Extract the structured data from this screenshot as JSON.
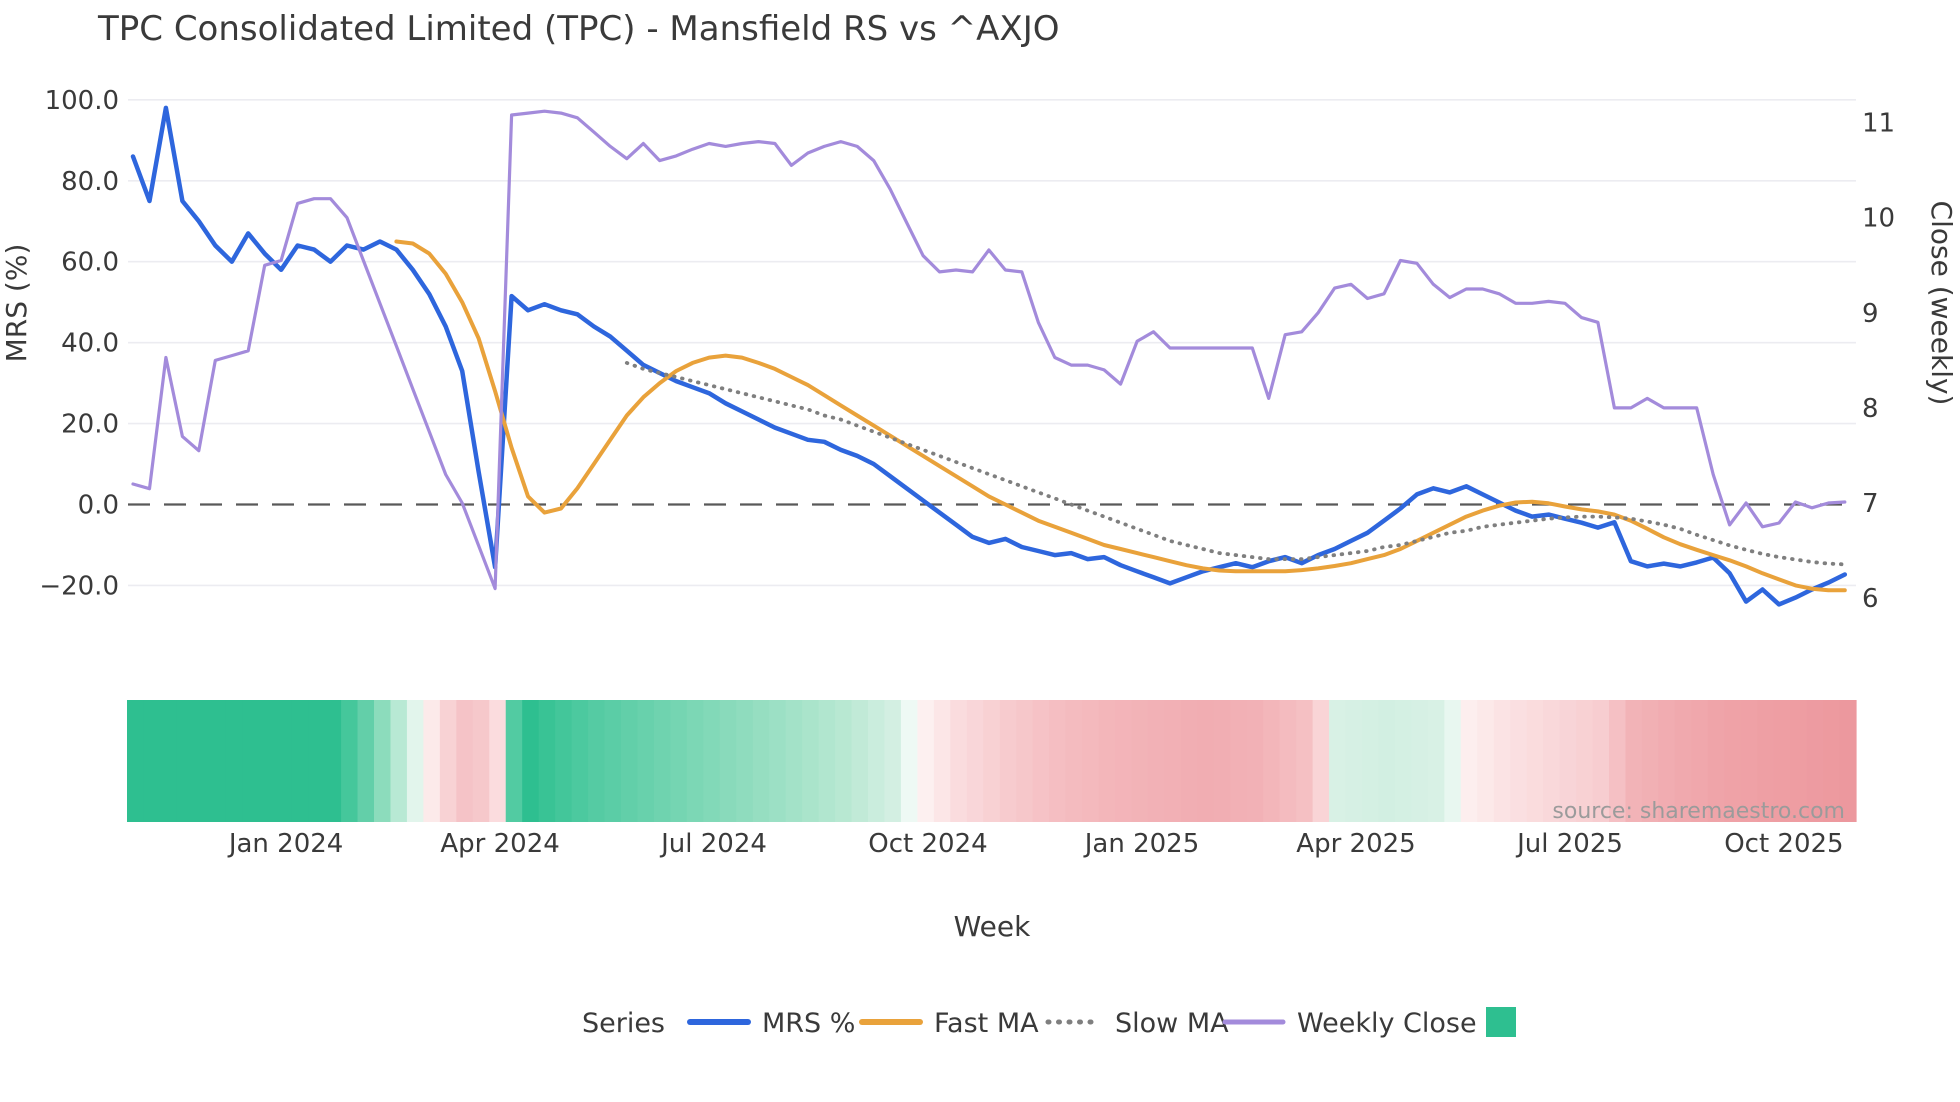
{
  "title": "TPC Consolidated Limited (TPC) - Mansfield RS vs ^AXJO",
  "source_text": "source: sharemaestro.com",
  "axes": {
    "left_label": "MRS (%)",
    "right_label": "Close (weekly)",
    "x_label": "Week"
  },
  "legend": {
    "title": "Series",
    "heatmap_swatch_color": "#2ebf90"
  },
  "chart_data": {
    "type": "line",
    "title": "TPC Consolidated Limited (TPC) - Mansfield RS vs ^AXJO",
    "xlabel": "Week",
    "ylabel_left": "MRS (%)",
    "ylabel_right": "Close (weekly)",
    "x_unit": "week",
    "weeks_total": 105,
    "grid": true,
    "legend_position": "bottom",
    "left_axis": {
      "lim": [
        -27,
        105
      ],
      "ticks": [
        {
          "label": "100.0",
          "value": 100
        },
        {
          "label": "80.0",
          "value": 80
        },
        {
          "label": "60.0",
          "value": 60
        },
        {
          "label": "40.0",
          "value": 40
        },
        {
          "label": "20.0",
          "value": 20
        },
        {
          "label": "0.0",
          "value": 0
        },
        {
          "label": "−20.0",
          "value": -20
        }
      ]
    },
    "right_axis": {
      "lim": [
        5.9,
        11.3
      ],
      "ticks": [
        {
          "label": "11",
          "value": 11
        },
        {
          "label": "10",
          "value": 10
        },
        {
          "label": "9",
          "value": 9
        },
        {
          "label": "8",
          "value": 8
        },
        {
          "label": "7",
          "value": 7
        },
        {
          "label": "6",
          "value": 6
        }
      ]
    },
    "x_ticks": [
      {
        "label": "Jan 2024",
        "week": 9.3
      },
      {
        "label": "Apr 2024",
        "week": 22.3
      },
      {
        "label": "Jul 2024",
        "week": 35.3
      },
      {
        "label": "Oct 2024",
        "week": 48.3
      },
      {
        "label": "Jan 2025",
        "week": 61.3
      },
      {
        "label": "Apr 2025",
        "week": 74.3
      },
      {
        "label": "Jul 2025",
        "week": 87.3
      },
      {
        "label": "Oct 2025",
        "week": 100.3
      }
    ],
    "zero_line": {
      "value": 0,
      "axis": "left",
      "style": "dashed",
      "color": "#595959"
    },
    "series": [
      {
        "name": "MRS %",
        "axis": "left",
        "color": "#2e66dd",
        "width": 4.5,
        "style": "solid",
        "start_week": 0,
        "values": [
          86,
          75,
          98,
          75,
          70,
          64,
          60,
          67,
          62,
          58,
          64,
          63,
          60,
          64,
          63,
          65,
          63,
          58,
          52,
          44,
          33,
          8,
          -15.5,
          51.5,
          48,
          49.5,
          48,
          47,
          44,
          41.5,
          38,
          34.5,
          32.5,
          30.5,
          29,
          27.5,
          25,
          23,
          21,
          19,
          17.5,
          16,
          15.5,
          13.5,
          12,
          10,
          7,
          4,
          1,
          -2,
          -5,
          -8,
          -9.5,
          -8.5,
          -10.5,
          -11.5,
          -12.5,
          -12,
          -13.5,
          -13,
          -15,
          -16.5,
          -18,
          -19.5,
          -18,
          -16.5,
          -15.5,
          -14.5,
          -15.5,
          -14,
          -13,
          -14.5,
          -12.5,
          -11,
          -9,
          -7,
          -4,
          -1,
          2.5,
          4,
          3,
          4.5,
          2.5,
          0.5,
          -1.5,
          -3,
          -2.5,
          -3.5,
          -4.5,
          -5.7,
          -4.4,
          -14,
          -15.3,
          -14.6,
          -15.3,
          -14.3,
          -13.1,
          -17,
          -24,
          -21,
          -24.7,
          -23,
          -21,
          -19.3,
          -17.3
        ]
      },
      {
        "name": "Fast MA",
        "axis": "left",
        "color": "#e9a23b",
        "width": 4,
        "style": "solid",
        "start_week": 16,
        "values": [
          65,
          64.5,
          62,
          57,
          50,
          41,
          28,
          14,
          2,
          -2,
          -1,
          4,
          10,
          16,
          22,
          26.5,
          30,
          33,
          35,
          36.3,
          36.8,
          36.3,
          35,
          33.5,
          31.5,
          29.5,
          27,
          24.5,
          22,
          19.5,
          17,
          14.5,
          12,
          9.5,
          7,
          4.5,
          2,
          0,
          -2,
          -4,
          -5.5,
          -7,
          -8.5,
          -10,
          -11,
          -12,
          -13,
          -14,
          -15,
          -15.8,
          -16.3,
          -16.5,
          -16.5,
          -16.5,
          -16.5,
          -16.2,
          -15.8,
          -15.2,
          -14.5,
          -13.5,
          -12.5,
          -11,
          -9,
          -7,
          -5,
          -3,
          -1.5,
          -0.3,
          0.5,
          0.7,
          0.3,
          -0.5,
          -1.2,
          -1.7,
          -2.5,
          -4,
          -6,
          -8.1,
          -9.8,
          -11.2,
          -12.5,
          -13.8,
          -15.3,
          -17,
          -18.5,
          -20,
          -20.8,
          -21.2,
          -21.2
        ]
      },
      {
        "name": "Slow MA",
        "axis": "left",
        "color": "#7f7f7f",
        "width": 3.8,
        "style": "dotted",
        "start_week": 30,
        "values": [
          35,
          33.5,
          32.5,
          31.5,
          30.5,
          29.5,
          28.5,
          27.5,
          26.5,
          25.5,
          24.5,
          23.5,
          22,
          21,
          19.5,
          18,
          16.5,
          15,
          13.5,
          12,
          10.5,
          9,
          7.5,
          6,
          4.5,
          3,
          1.5,
          0,
          -1.5,
          -3,
          -4.5,
          -6,
          -7.5,
          -9,
          -10,
          -11,
          -12,
          -12.5,
          -13,
          -13.5,
          -13.5,
          -13.5,
          -13,
          -12.5,
          -12,
          -11.5,
          -10.5,
          -10,
          -9,
          -8,
          -7,
          -6.5,
          -5.5,
          -5,
          -4.5,
          -4,
          -3.5,
          -3.2,
          -3,
          -3,
          -3.2,
          -3.5,
          -4.2,
          -5,
          -6,
          -7.5,
          -8.8,
          -10.1,
          -11.2,
          -12.2,
          -13,
          -13.6,
          -14.2,
          -14.6,
          -14.8
        ]
      },
      {
        "name": "Weekly Close",
        "axis": "right",
        "color": "#a38bdb",
        "width": 3.2,
        "style": "solid",
        "start_week": 0,
        "values": [
          7.2,
          7.15,
          8.53,
          7.7,
          7.55,
          8.5,
          8.55,
          8.6,
          9.5,
          9.55,
          10.15,
          10.2,
          10.2,
          10.0,
          9.55,
          9.1,
          8.65,
          8.2,
          7.75,
          7.3,
          7.0,
          6.55,
          6.1,
          11.08,
          11.1,
          11.12,
          11.1,
          11.05,
          10.9,
          10.75,
          10.62,
          10.78,
          10.6,
          10.65,
          10.72,
          10.78,
          10.75,
          10.78,
          10.8,
          10.78,
          10.55,
          10.68,
          10.75,
          10.8,
          10.75,
          10.6,
          10.3,
          9.95,
          9.6,
          9.43,
          9.45,
          9.43,
          9.66,
          9.45,
          9.43,
          8.9,
          8.53,
          8.45,
          8.45,
          8.4,
          8.25,
          8.7,
          8.8,
          8.63,
          8.63,
          8.63,
          8.63,
          8.63,
          8.63,
          8.1,
          8.77,
          8.8,
          9.0,
          9.26,
          9.3,
          9.15,
          9.2,
          9.55,
          9.52,
          9.3,
          9.16,
          9.25,
          9.25,
          9.2,
          9.1,
          9.1,
          9.12,
          9.1,
          8.95,
          8.9,
          8.0,
          8.0,
          8.1,
          8.0,
          8.0,
          8.0,
          7.3,
          6.77,
          7.0,
          6.75,
          6.79,
          7.01,
          6.95,
          7.0,
          7.01
        ]
      }
    ],
    "heatmap": {
      "description": "weekly signal strip, green=strong, red=weak",
      "cell_count": 105,
      "stops": [
        {
          "week": 0,
          "color": "#2ebf90"
        },
        {
          "week": 12,
          "color": "#2ebf90"
        },
        {
          "week": 13,
          "color": "#45c79b"
        },
        {
          "week": 14,
          "color": "#63cfa9"
        },
        {
          "week": 15,
          "color": "#8cdcbc"
        },
        {
          "week": 16,
          "color": "#b8e9d4"
        },
        {
          "week": 17,
          "color": "#e2f5ec"
        },
        {
          "week": 18,
          "color": "#fceaea"
        },
        {
          "week": 19,
          "color": "#f8d2d4"
        },
        {
          "week": 20,
          "color": "#f5c3c7"
        },
        {
          "week": 21,
          "color": "#f6c8cb"
        },
        {
          "week": 22,
          "color": "#fbdcde"
        },
        {
          "week": 23,
          "color": "#52cba2"
        },
        {
          "week": 24,
          "color": "#2ebf90"
        },
        {
          "week": 26,
          "color": "#43c69a"
        },
        {
          "week": 28,
          "color": "#55cba3"
        },
        {
          "week": 31,
          "color": "#68d1ac"
        },
        {
          "week": 34,
          "color": "#7cd7b5"
        },
        {
          "week": 37,
          "color": "#8fdcbe"
        },
        {
          "week": 40,
          "color": "#a3e2c8"
        },
        {
          "week": 43,
          "color": "#b8e8d2"
        },
        {
          "week": 46,
          "color": "#d3efe2"
        },
        {
          "week": 47,
          "color": "#eef9f4"
        },
        {
          "week": 48,
          "color": "#fdf0f0"
        },
        {
          "week": 50,
          "color": "#fadcde"
        },
        {
          "week": 53,
          "color": "#f7cbce"
        },
        {
          "week": 56,
          "color": "#f5bec2"
        },
        {
          "week": 59,
          "color": "#f3b6ba"
        },
        {
          "week": 62,
          "color": "#f2b1b6"
        },
        {
          "week": 65,
          "color": "#f1adb2"
        },
        {
          "week": 68,
          "color": "#f2b1b6"
        },
        {
          "week": 71,
          "color": "#f5c0c3"
        },
        {
          "week": 72,
          "color": "#f9d4d6"
        },
        {
          "week": 73,
          "color": "#d8f1e5"
        },
        {
          "week": 76,
          "color": "#d2efe2"
        },
        {
          "week": 79,
          "color": "#d8f1e5"
        },
        {
          "week": 80,
          "color": "#e8f7f0"
        },
        {
          "week": 81,
          "color": "#fdeeee"
        },
        {
          "week": 83,
          "color": "#fbe3e4"
        },
        {
          "week": 86,
          "color": "#f9d8da"
        },
        {
          "week": 89,
          "color": "#f7cdd0"
        },
        {
          "week": 91,
          "color": "#f2b3b7"
        },
        {
          "week": 94,
          "color": "#f0a9ae"
        },
        {
          "week": 97,
          "color": "#efa2a7"
        },
        {
          "week": 100,
          "color": "#ee9ea3"
        },
        {
          "week": 104,
          "color": "#ec989e"
        }
      ]
    },
    "colors": {
      "grid": "#ececf1",
      "zero_dash": "#595959",
      "text": "#3a3a3a",
      "source": "#9b9b9b",
      "heatmap_green": "#2ebf90",
      "heatmap_red": "#ec989e"
    }
  }
}
